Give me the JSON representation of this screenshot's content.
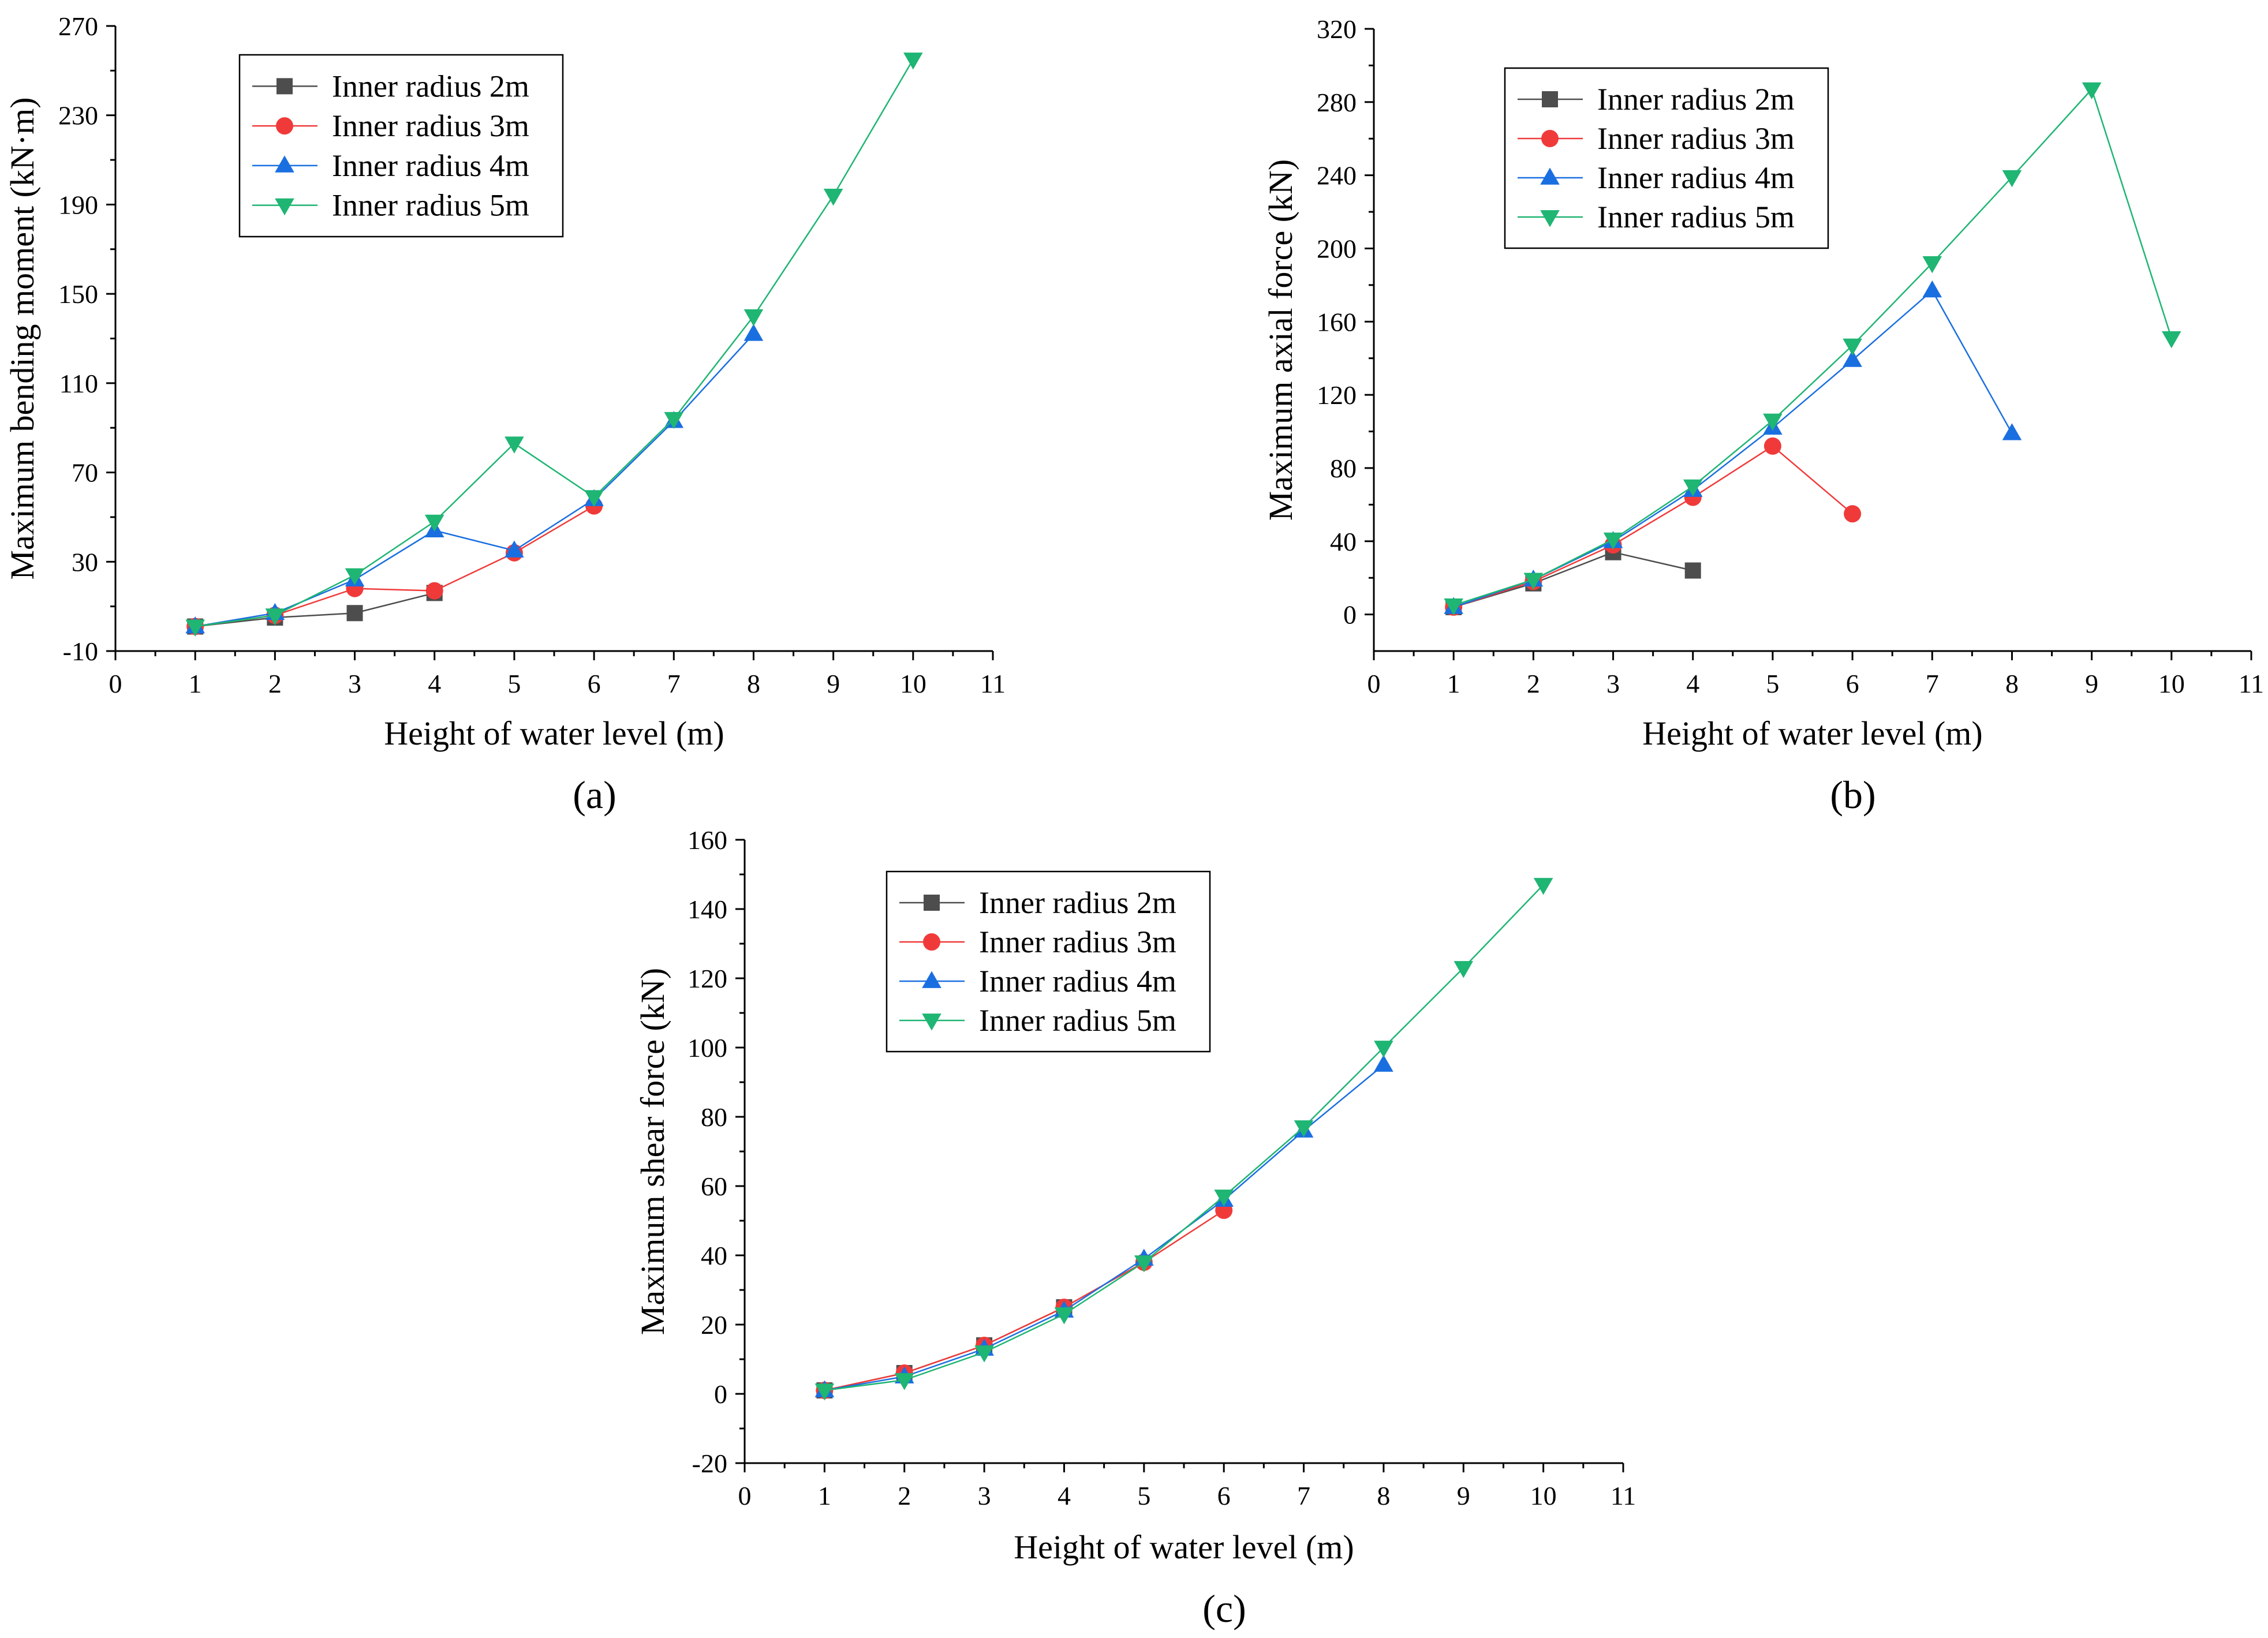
{
  "colors": {
    "r2": "#4d4d4d",
    "r3": "#f03a3a",
    "r4": "#1a6fe0",
    "r5": "#1fb573"
  },
  "chart_data": [
    {
      "type": "line",
      "panel_label": "(a)",
      "title": "",
      "xlabel": "Height of water level (m)",
      "ylabel": "Maximum bending moment (kN·m)",
      "xlim": [
        0,
        11
      ],
      "ylim": [
        -10,
        270
      ],
      "xticks": [
        "0",
        "1",
        "2",
        "3",
        "4",
        "5",
        "6",
        "7",
        "8",
        "9",
        "10",
        "11"
      ],
      "yticks": [
        "-10",
        "30",
        "70",
        "110",
        "150",
        "190",
        "230",
        "270"
      ],
      "legend_position": "top-left",
      "series": [
        {
          "name": "Inner radius 2m",
          "marker": "square",
          "color_key": "r2",
          "x": [
            1,
            2,
            3,
            4
          ],
          "y": [
            1,
            5,
            7,
            16
          ]
        },
        {
          "name": "Inner radius 3m",
          "marker": "circle",
          "color_key": "r3",
          "x": [
            1,
            2,
            3,
            4,
            5,
            6
          ],
          "y": [
            1,
            6,
            18,
            17,
            34,
            55
          ]
        },
        {
          "name": "Inner radius 4m",
          "marker": "triangle-up",
          "color_key": "r4",
          "x": [
            1,
            2,
            3,
            4,
            5,
            6,
            7,
            8
          ],
          "y": [
            1,
            7,
            22,
            44,
            35,
            58,
            93,
            132
          ]
        },
        {
          "name": "Inner radius 5m",
          "marker": "triangle-down",
          "color_key": "r5",
          "x": [
            1,
            2,
            3,
            4,
            5,
            6,
            7,
            8,
            9,
            10
          ],
          "y": [
            1,
            6,
            24,
            48,
            83,
            59,
            94,
            140,
            194,
            255
          ]
        }
      ]
    },
    {
      "type": "line",
      "panel_label": "(b)",
      "title": "",
      "xlabel": "Height of water level (m)",
      "ylabel": "Maximum axial force (kN)",
      "xlim": [
        0,
        11
      ],
      "ylim": [
        -20,
        320
      ],
      "xticks": [
        "0",
        "1",
        "2",
        "3",
        "4",
        "5",
        "6",
        "7",
        "8",
        "9",
        "10",
        "11"
      ],
      "yticks": [
        "0",
        "40",
        "80",
        "120",
        "160",
        "200",
        "240",
        "280",
        "320"
      ],
      "legend_position": "top-left",
      "series": [
        {
          "name": "Inner radius 2m",
          "marker": "square",
          "color_key": "r2",
          "x": [
            1,
            2,
            3,
            4
          ],
          "y": [
            4,
            17,
            34,
            24
          ]
        },
        {
          "name": "Inner radius 3m",
          "marker": "circle",
          "color_key": "r3",
          "x": [
            1,
            2,
            3,
            4,
            5,
            6
          ],
          "y": [
            4,
            18,
            38,
            64,
            92,
            55
          ]
        },
        {
          "name": "Inner radius 4m",
          "marker": "triangle-up",
          "color_key": "r4",
          "x": [
            1,
            2,
            3,
            4,
            5,
            6,
            7,
            8
          ],
          "y": [
            4,
            19,
            40,
            68,
            102,
            139,
            177,
            99
          ]
        },
        {
          "name": "Inner radius 5m",
          "marker": "triangle-down",
          "color_key": "r5",
          "x": [
            1,
            2,
            3,
            4,
            5,
            6,
            7,
            8,
            9,
            10
          ],
          "y": [
            5,
            19,
            41,
            70,
            106,
            147,
            192,
            239,
            287,
            151
          ]
        }
      ]
    },
    {
      "type": "line",
      "panel_label": "(c)",
      "title": "",
      "xlabel": "Height of water level (m)",
      "ylabel": "Maximum shear force (kN)",
      "xlim": [
        0,
        11
      ],
      "ylim": [
        -20,
        160
      ],
      "xticks": [
        "0",
        "1",
        "2",
        "3",
        "4",
        "5",
        "6",
        "7",
        "8",
        "9",
        "10",
        "11"
      ],
      "yticks": [
        "-20",
        "0",
        "20",
        "40",
        "60",
        "80",
        "100",
        "120",
        "140",
        "160"
      ],
      "legend_position": "top-left",
      "series": [
        {
          "name": "Inner radius 2m",
          "marker": "square",
          "color_key": "r2",
          "x": [
            1,
            2,
            3,
            4
          ],
          "y": [
            1,
            6,
            14,
            25
          ]
        },
        {
          "name": "Inner radius 3m",
          "marker": "circle",
          "color_key": "r3",
          "x": [
            1,
            2,
            3,
            4,
            5,
            6
          ],
          "y": [
            1,
            6,
            14,
            25,
            38,
            53
          ]
        },
        {
          "name": "Inner radius 4m",
          "marker": "triangle-up",
          "color_key": "r4",
          "x": [
            1,
            2,
            3,
            4,
            5,
            6,
            7,
            8
          ],
          "y": [
            1,
            5,
            13,
            24,
            39,
            56,
            76,
            95
          ]
        },
        {
          "name": "Inner radius 5m",
          "marker": "triangle-down",
          "color_key": "r5",
          "x": [
            1,
            2,
            3,
            4,
            5,
            6,
            7,
            8,
            9,
            10
          ],
          "y": [
            1,
            4,
            12,
            23,
            38,
            57,
            77,
            100,
            123,
            147
          ]
        }
      ]
    }
  ]
}
